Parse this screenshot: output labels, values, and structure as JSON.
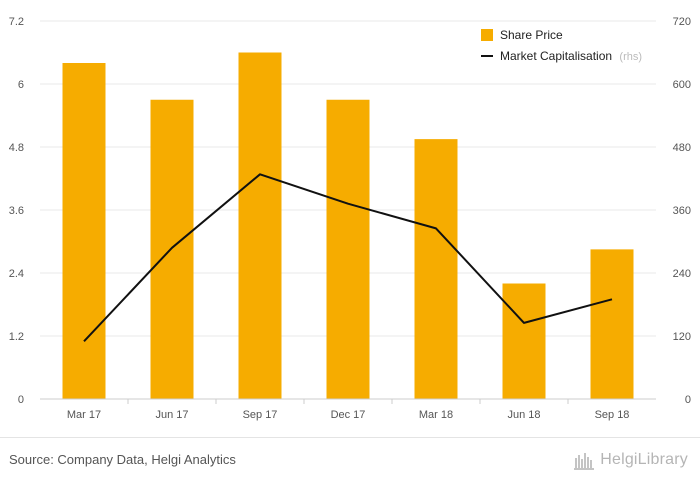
{
  "chart_data": {
    "type": "bar",
    "categories": [
      "Mar 17",
      "Jun 17",
      "Sep 17",
      "Dec 17",
      "Mar 18",
      "Jun 18",
      "Sep 18"
    ],
    "series": [
      {
        "name": "Share Price",
        "type": "bar",
        "axis": "left",
        "color": "#f6ac00",
        "values": [
          6.4,
          5.7,
          6.6,
          5.7,
          4.95,
          2.2,
          2.85
        ]
      },
      {
        "name": "Market Capitalisation",
        "type": "line",
        "axis": "right",
        "color": "#111111",
        "values": [
          110,
          288,
          428,
          372,
          325,
          145,
          190
        ]
      }
    ],
    "ylim_left": [
      0,
      7.2
    ],
    "yticks_left": [
      "0",
      "1.2",
      "2.4",
      "3.6",
      "4.8",
      "6",
      "7.2"
    ],
    "ylim_right": [
      0,
      720
    ],
    "yticks_right": [
      "0",
      "120",
      "240",
      "360",
      "480",
      "600",
      "720"
    ],
    "grid": true,
    "legend": {
      "placement": "top-right",
      "items": [
        {
          "label": "Share Price",
          "suffix": ""
        },
        {
          "label": "Market Capitalisation",
          "suffix": "(rhs)"
        }
      ]
    }
  },
  "footer": {
    "source": "Source: Company Data, Helgi Analytics",
    "brand_text": "HelgiLibrary",
    "brand_icon": "library-icon"
  }
}
